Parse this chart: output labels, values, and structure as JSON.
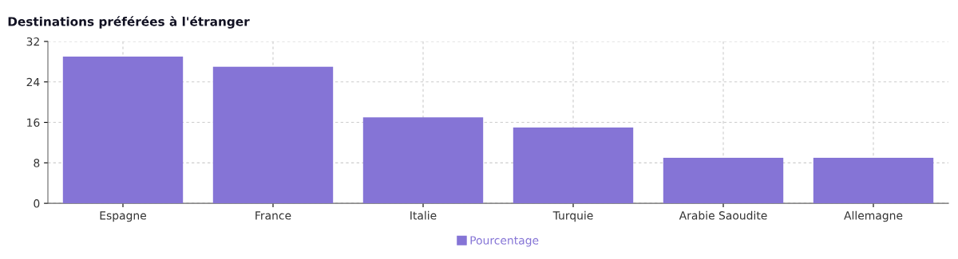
{
  "chart_data": {
    "type": "bar",
    "title": "Destinations préférées à l'étranger",
    "categories": [
      "Espagne",
      "France",
      "Italie",
      "Turquie",
      "Arabie Saoudite",
      "Allemagne"
    ],
    "series": [
      {
        "name": "Pourcentage",
        "color": "#8574d6",
        "values": [
          29,
          27,
          17,
          15,
          9,
          9
        ]
      }
    ],
    "ylim": [
      0,
      32
    ],
    "yticks": [
      0,
      8,
      16,
      24,
      32
    ],
    "grid": true,
    "legend": "bottom"
  }
}
